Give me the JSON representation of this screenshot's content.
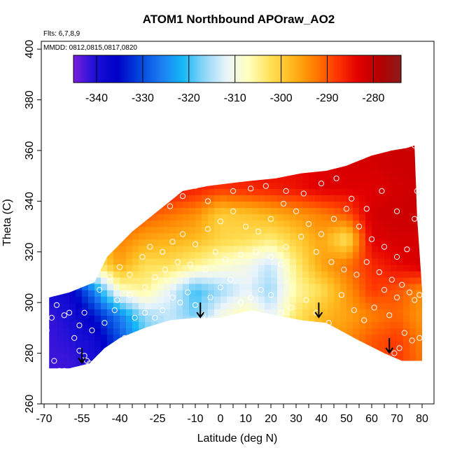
{
  "chart_data": {
    "type": "heatmap",
    "title": "ATOM1 Northbound APOraw_AO2",
    "annotations": [
      "Flts: 6,7,8,9",
      "MMDD: 0812,0815,0817,0820"
    ],
    "xlabel": "Latitude (deg N)",
    "ylabel": "Theta (C)",
    "xlim": [
      -72,
      85
    ],
    "ylim": [
      260,
      405
    ],
    "x_ticks": [
      -70,
      -55,
      -40,
      -25,
      -10,
      0,
      10,
      20,
      30,
      40,
      50,
      60,
      70,
      80
    ],
    "y_ticks": [
      260,
      280,
      300,
      320,
      340,
      360,
      380,
      400
    ],
    "colorbar": {
      "range": [
        -345,
        -274
      ],
      "ticks": [
        -340,
        -330,
        -320,
        -310,
        -300,
        -290,
        -280
      ],
      "colors": [
        "#7b1fe0",
        "#1a0fd6",
        "#0000c8",
        "#0044dd",
        "#1d7cf2",
        "#14b8f8",
        "#8fd6f8",
        "#eaf4fb",
        "#ffffc0",
        "#ffe25a",
        "#ffb81c",
        "#ff8000",
        "#ff3a00",
        "#e40000",
        "#b40000",
        "#8e1a1a"
      ]
    },
    "field": {
      "x": [
        -70,
        -60,
        -50,
        -40,
        -30,
        -20,
        -10,
        0,
        10,
        20,
        30,
        40,
        50,
        60,
        70,
        80
      ],
      "y": [
        275,
        285,
        295,
        305,
        315,
        325,
        335,
        345,
        355
      ],
      "values": [
        [
          -342,
          -342,
          -340,
          -330,
          -320,
          -312,
          -308,
          -306,
          -305,
          -304,
          -302,
          -300,
          -298,
          -290,
          -288,
          -292
        ],
        [
          -342,
          -341,
          -339,
          -330,
          -320,
          -312,
          -310,
          -306,
          -304,
          -302,
          -300,
          -296,
          -294,
          -290,
          -288,
          -293
        ],
        [
          -342,
          -340,
          -334,
          -326,
          -316,
          -314,
          -318,
          -310,
          -306,
          -312,
          -303,
          -298,
          -296,
          -293,
          -291,
          -295
        ],
        [
          -340,
          -338,
          -325,
          -308,
          -305,
          -312,
          -320,
          -316,
          -312,
          -316,
          -306,
          -302,
          -295,
          -288,
          -290,
          -294
        ],
        [
          -332,
          -326,
          -304,
          -296,
          -302,
          -302,
          -305,
          -308,
          -310,
          -314,
          -304,
          -296,
          -292,
          -287,
          -284,
          -282
        ],
        [
          -316,
          -308,
          -298,
          -293,
          -296,
          -297,
          -298,
          -301,
          -302,
          -304,
          -300,
          -296,
          -303,
          -283,
          -282,
          -282
        ],
        [
          -300,
          -294,
          -290,
          -287,
          -290,
          -292,
          -294,
          -300,
          -299,
          -297,
          -295,
          -293,
          -290,
          -282,
          -281,
          -281
        ],
        [
          -292,
          -288,
          -286,
          -284,
          -284,
          -285,
          -286,
          -288,
          -287,
          -286,
          -285,
          -283,
          -283,
          -283,
          -282,
          -281
        ],
        [
          -290,
          -288,
          -286,
          -284,
          -284,
          -284,
          -284,
          -284,
          -284,
          -284,
          -284,
          -283,
          -282,
          -282,
          -281,
          -281
        ]
      ]
    },
    "data_region": {
      "upper": [
        [
          -68,
          302
        ],
        [
          -60,
          304
        ],
        [
          -50,
          308
        ],
        [
          -45,
          318
        ],
        [
          -35,
          328
        ],
        [
          -25,
          336
        ],
        [
          -15,
          344
        ],
        [
          -5,
          346
        ],
        [
          3,
          347
        ],
        [
          12,
          348
        ],
        [
          22,
          349
        ],
        [
          32,
          351
        ],
        [
          42,
          352
        ],
        [
          50,
          354
        ],
        [
          60,
          358
        ],
        [
          68,
          360
        ],
        [
          74,
          361
        ],
        [
          77,
          362
        ],
        [
          78,
          334
        ],
        [
          80,
          305
        ],
        [
          80,
          300
        ]
      ],
      "lower": [
        [
          -68,
          274
        ],
        [
          -60,
          274
        ],
        [
          -52,
          276
        ],
        [
          -46,
          282
        ],
        [
          -40,
          286
        ],
        [
          -30,
          290
        ],
        [
          -20,
          293
        ],
        [
          -10,
          294
        ],
        [
          0,
          294
        ],
        [
          12,
          297
        ],
        [
          22,
          295
        ],
        [
          32,
          293
        ],
        [
          42,
          292
        ],
        [
          55,
          285
        ],
        [
          65,
          280
        ],
        [
          72,
          277
        ],
        [
          80,
          277
        ]
      ]
    },
    "points": [
      [
        -69,
        289
      ],
      [
        -67,
        294
      ],
      [
        -65,
        299
      ],
      [
        -62,
        295
      ],
      [
        -60,
        296
      ],
      [
        -58,
        286
      ],
      [
        -56,
        281
      ],
      [
        -54,
        279
      ],
      [
        -53,
        277
      ],
      [
        -52,
        276
      ],
      [
        -50,
        275
      ],
      [
        -66,
        277
      ],
      [
        -64,
        273
      ],
      [
        -62,
        273
      ],
      [
        -59,
        272
      ],
      [
        -56,
        291
      ],
      [
        -54,
        296
      ],
      [
        -51,
        289
      ],
      [
        -46,
        292
      ],
      [
        -41,
        301
      ],
      [
        -38,
        286
      ],
      [
        -34,
        294
      ],
      [
        -30,
        296
      ],
      [
        -26,
        294
      ],
      [
        -23,
        297
      ],
      [
        -19,
        302
      ],
      [
        -16,
        300
      ],
      [
        -13,
        304
      ],
      [
        -10,
        299
      ],
      [
        -7,
        295
      ],
      [
        -4,
        302
      ],
      [
        0,
        306
      ],
      [
        4,
        309
      ],
      [
        8,
        300
      ],
      [
        12,
        302
      ],
      [
        16,
        305
      ],
      [
        20,
        303
      ],
      [
        24,
        296
      ],
      [
        28,
        298
      ],
      [
        34,
        301
      ],
      [
        38,
        296
      ],
      [
        43,
        292
      ],
      [
        48,
        303
      ],
      [
        53,
        297
      ],
      [
        57,
        293
      ],
      [
        61,
        298
      ],
      [
        65,
        305
      ],
      [
        67,
        295
      ],
      [
        70,
        302
      ],
      [
        72,
        307
      ],
      [
        75,
        304
      ],
      [
        77,
        301
      ],
      [
        79,
        303
      ],
      [
        79,
        286
      ],
      [
        76,
        285
      ],
      [
        73,
        288
      ],
      [
        71,
        282
      ],
      [
        69,
        280
      ],
      [
        -44,
        310
      ],
      [
        -40,
        314
      ],
      [
        -36,
        311
      ],
      [
        -31,
        318
      ],
      [
        -28,
        322
      ],
      [
        -23,
        320
      ],
      [
        -19,
        324
      ],
      [
        -15,
        327
      ],
      [
        -10,
        323
      ],
      [
        -5,
        329
      ],
      [
        0,
        332
      ],
      [
        5,
        336
      ],
      [
        10,
        330
      ],
      [
        15,
        328
      ],
      [
        20,
        333
      ],
      [
        25,
        339
      ],
      [
        30,
        336
      ],
      [
        35,
        331
      ],
      [
        40,
        327
      ],
      [
        45,
        333
      ],
      [
        50,
        337
      ],
      [
        55,
        330
      ],
      [
        60,
        325
      ],
      [
        65,
        322
      ],
      [
        70,
        318
      ],
      [
        74,
        321
      ],
      [
        77,
        333
      ],
      [
        78,
        344
      ],
      [
        77,
        362
      ],
      [
        -20,
        338
      ],
      [
        -15,
        342
      ],
      [
        -10,
        346
      ],
      [
        -5,
        340
      ],
      [
        5,
        344
      ],
      [
        12,
        345
      ],
      [
        18,
        346
      ],
      [
        26,
        344
      ],
      [
        33,
        343
      ],
      [
        40,
        347
      ],
      [
        46,
        349
      ],
      [
        52,
        341
      ],
      [
        58,
        337
      ],
      [
        64,
        344
      ],
      [
        70,
        336
      ],
      [
        -48,
        305
      ],
      [
        -42,
        297
      ],
      [
        -36,
        303
      ],
      [
        -30,
        306
      ],
      [
        -26,
        310
      ],
      [
        -22,
        313
      ],
      [
        -17,
        316
      ],
      [
        -12,
        315
      ],
      [
        -6,
        313
      ],
      [
        2,
        317
      ],
      [
        8,
        319
      ],
      [
        14,
        320
      ],
      [
        20,
        318
      ],
      [
        26,
        322
      ],
      [
        32,
        326
      ],
      [
        38,
        320
      ],
      [
        44,
        316
      ],
      [
        49,
        313
      ],
      [
        54,
        311
      ],
      [
        58,
        316
      ],
      [
        63,
        312
      ],
      [
        68,
        309
      ],
      [
        -2,
        320
      ],
      [
        24,
        315
      ]
    ],
    "arrows": [
      [
        -55,
        282
      ],
      [
        -8,
        300
      ],
      [
        39,
        300
      ],
      [
        67,
        286
      ]
    ],
    "grid": false
  }
}
